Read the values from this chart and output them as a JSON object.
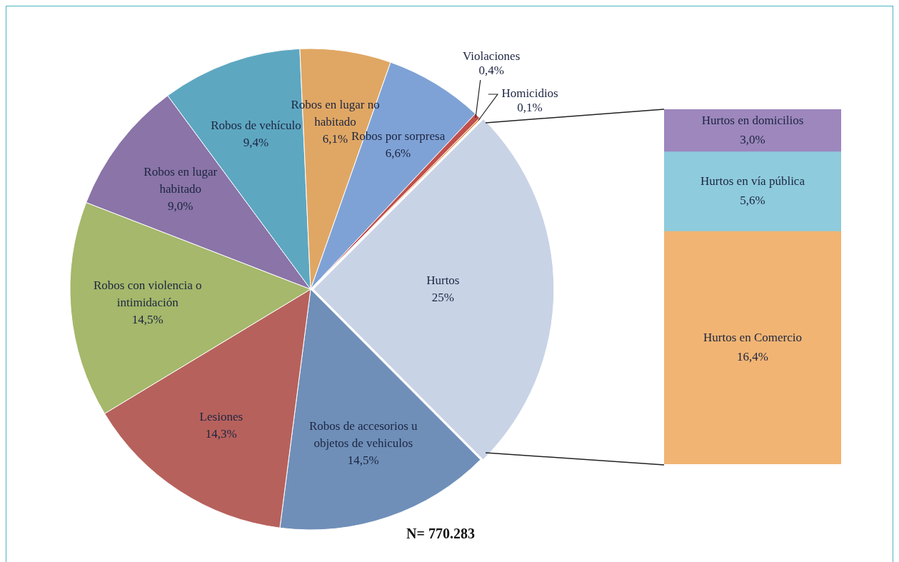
{
  "chart_data": [
    {
      "type": "pie",
      "categories": [
        "Hurtos",
        "Robos de accesorios u objetos de vehiculos",
        "Lesiones",
        "Robos con violencia o intimidación",
        "Robos en lugar habitado",
        "Robos de vehículo",
        "Robos en lugar no habitado",
        "Robos por sorpresa",
        "Violaciones",
        "Homicidios"
      ],
      "values": [
        25,
        14.5,
        14.3,
        14.5,
        9.0,
        9.4,
        6.1,
        6.6,
        0.4,
        0.1
      ],
      "value_labels": [
        "25%",
        "14,5%",
        "14,3%",
        "14,5%",
        "9,0%",
        "9,4%",
        "6,1%",
        "6,6%",
        "0,4%",
        "0,1%"
      ],
      "colors": [
        "#c9d3e6",
        "#6f8fb9",
        "#b7615c",
        "#a5b86b",
        "#8a74a8",
        "#5ea7c1",
        "#e0a764",
        "#7fa2d6",
        "#c0504d",
        "#e08a3c"
      ],
      "legend": false,
      "annotations": [
        "N= 770.283"
      ]
    },
    {
      "type": "bar",
      "stacked": true,
      "categories": [
        null
      ],
      "legend": false,
      "series": [
        {
          "name": "Hurtos en Comercio",
          "color": "#f1b473",
          "values": [
            16.4
          ],
          "value_labels": [
            "16,4%"
          ]
        },
        {
          "name": "Hurtos en vía pública",
          "color": "#8ecbdc",
          "values": [
            5.6
          ],
          "value_labels": [
            "5,6%"
          ]
        },
        {
          "name": "Hurtos en domicilios",
          "color": "#9d87bd",
          "values": [
            3.0
          ],
          "value_labels": [
            "3,0%"
          ]
        }
      ]
    }
  ]
}
